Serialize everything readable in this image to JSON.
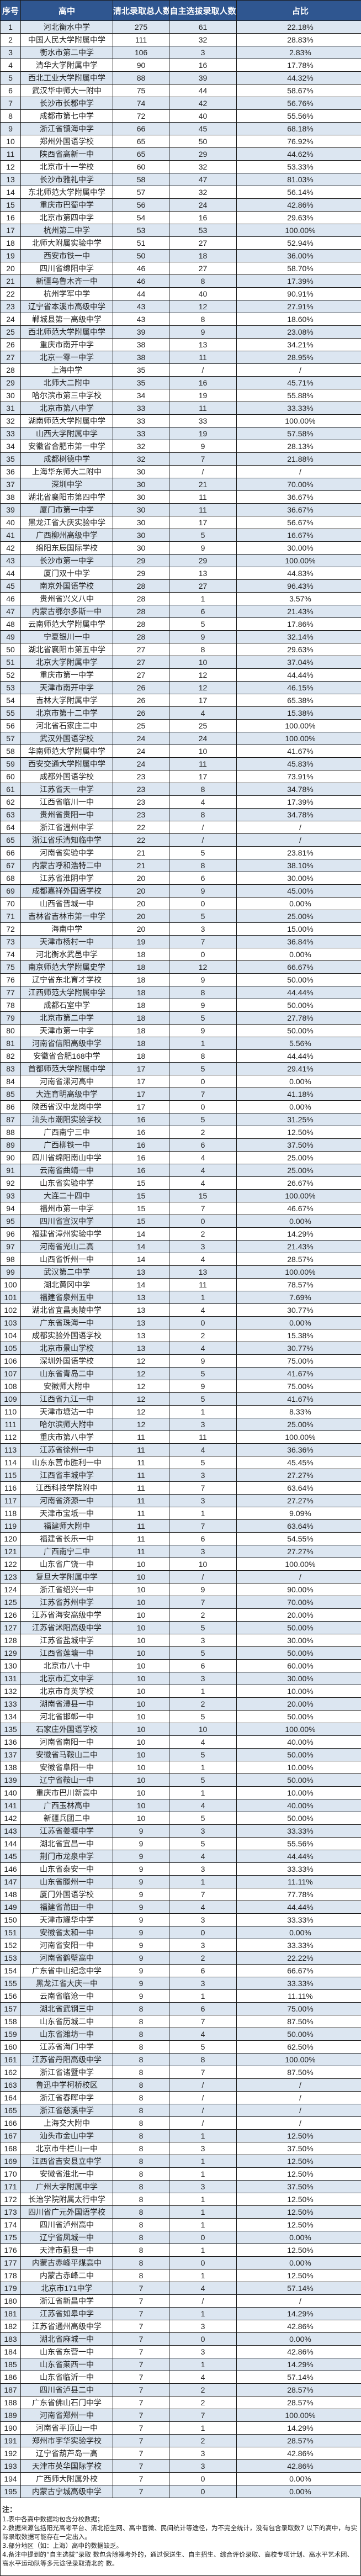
{
  "header": {
    "no": "序号",
    "school": "高中",
    "total": "清北录取总人数",
    "self": "自主选拔录取人数",
    "ratio": "占比"
  },
  "colors": {
    "header_bg": "#2f5690",
    "odd_row": "#dce6f1",
    "even_row": "#ffffff"
  },
  "rows": [
    [
      "1",
      "河北衡水中学",
      "275",
      "61",
      "22.18%"
    ],
    [
      "2",
      "中国人民大学附属中学",
      "111",
      "32",
      "28.83%"
    ],
    [
      "3",
      "衡水市第二中学",
      "106",
      "3",
      "2.83%"
    ],
    [
      "4",
      "清华大学附属中学",
      "90",
      "16",
      "17.78%"
    ],
    [
      "5",
      "西北工业大学附属中学",
      "88",
      "39",
      "44.32%"
    ],
    [
      "6",
      "武汉华中师大一附中",
      "75",
      "44",
      "58.67%"
    ],
    [
      "7",
      "长沙市长郡中学",
      "74",
      "42",
      "56.76%"
    ],
    [
      "8",
      "成都市第七中学",
      "72",
      "40",
      "55.56%"
    ],
    [
      "9",
      "浙江省镇海中学",
      "66",
      "45",
      "68.18%"
    ],
    [
      "10",
      "郑州外国语学校",
      "65",
      "50",
      "76.92%"
    ],
    [
      "11",
      "陕西省高新一中",
      "65",
      "29",
      "44.62%"
    ],
    [
      "12",
      "北京市十一学校",
      "60",
      "32",
      "53.33%"
    ],
    [
      "13",
      "长沙市雅礼中学",
      "58",
      "47",
      "81.03%"
    ],
    [
      "14",
      "东北师范大学附属中学",
      "57",
      "32",
      "56.14%"
    ],
    [
      "15",
      "重庆市巴蜀中学",
      "56",
      "24",
      "42.86%"
    ],
    [
      "16",
      "北京市第四中学",
      "54",
      "16",
      "29.63%"
    ],
    [
      "17",
      "杭州第二中学",
      "53",
      "53",
      "100.00%"
    ],
    [
      "18",
      "北师大附属实验中学",
      "51",
      "27",
      "52.94%"
    ],
    [
      "19",
      "西安市铁一中",
      "50",
      "18",
      "36.00%"
    ],
    [
      "20",
      "四川省绵阳中学",
      "46",
      "27",
      "58.70%"
    ],
    [
      "21",
      "新疆乌鲁木齐一中",
      "46",
      "8",
      "17.39%"
    ],
    [
      "22",
      "杭州学军中学",
      "44",
      "40",
      "90.91%"
    ],
    [
      "23",
      "辽宁省本溪市高级中学",
      "43",
      "12",
      "27.91%"
    ],
    [
      "24",
      "郸城县第一高级中学",
      "43",
      "8",
      "18.60%"
    ],
    [
      "25",
      "西北师范大学附属中学",
      "39",
      "9",
      "23.08%"
    ],
    [
      "26",
      "重庆市南开中学",
      "38",
      "13",
      "34.21%"
    ],
    [
      "27",
      "北京一零一中学",
      "38",
      "11",
      "28.95%"
    ],
    [
      "28",
      "上海中学",
      "35",
      "/",
      "/"
    ],
    [
      "29",
      "北师大二附中",
      "35",
      "16",
      "45.71%"
    ],
    [
      "30",
      "哈尔滨市第三中学校",
      "34",
      "19",
      "55.88%"
    ],
    [
      "31",
      "北京市第八中学",
      "33",
      "11",
      "33.33%"
    ],
    [
      "32",
      "湖南师范大学附属中学",
      "33",
      "33",
      "100.00%"
    ],
    [
      "33",
      "山西大学附属中学",
      "33",
      "19",
      "57.58%"
    ],
    [
      "34",
      "安徽省合肥市第一中学",
      "32",
      "9",
      "28.13%"
    ],
    [
      "35",
      "成都树德中学",
      "32",
      "7",
      "21.88%"
    ],
    [
      "36",
      "上海华东师大二附中",
      "30",
      "/",
      "/"
    ],
    [
      "37",
      "深圳中学",
      "30",
      "21",
      "70.00%"
    ],
    [
      "38",
      "湖北省襄阳市第四中学",
      "30",
      "11",
      "36.67%"
    ],
    [
      "39",
      "厦门市第一中学",
      "30",
      "11",
      "36.67%"
    ],
    [
      "40",
      "黑龙江省大庆实验中学",
      "30",
      "17",
      "56.67%"
    ],
    [
      "41",
      "广西柳州高级中学",
      "30",
      "5",
      "16.67%"
    ],
    [
      "42",
      "绵阳东辰国际学校",
      "30",
      "9",
      "30.00%"
    ],
    [
      "43",
      "长沙市第一中学",
      "29",
      "29",
      "100.00%"
    ],
    [
      "44",
      "厦门双十中学",
      "29",
      "13",
      "44.83%"
    ],
    [
      "45",
      "南京外国语学校",
      "28",
      "27",
      "96.43%"
    ],
    [
      "46",
      "贵州省兴义八中",
      "28",
      "1",
      "3.57%"
    ],
    [
      "47",
      "内蒙古鄂尔多斯一中",
      "28",
      "6",
      "21.43%"
    ],
    [
      "48",
      "云南师范大学附属中学",
      "28",
      "5",
      "17.86%"
    ],
    [
      "49",
      "宁夏银川一中",
      "28",
      "9",
      "32.14%"
    ],
    [
      "50",
      "湖北省襄阳市第五中学",
      "27",
      "8",
      "29.63%"
    ],
    [
      "51",
      "北京大学附属中学",
      "27",
      "10",
      "37.04%"
    ],
    [
      "52",
      "重庆市第一中学",
      "27",
      "12",
      "44.44%"
    ],
    [
      "53",
      "天津市南开中学",
      "26",
      "12",
      "46.15%"
    ],
    [
      "54",
      "吉林大学附属中学",
      "26",
      "17",
      "65.38%"
    ],
    [
      "55",
      "北京市第十二中学",
      "26",
      "4",
      "15.38%"
    ],
    [
      "56",
      "河北省石家庄二中",
      "25",
      "25",
      "100.00%"
    ],
    [
      "57",
      "武汉外国语学校",
      "24",
      "24",
      "100.00%"
    ],
    [
      "58",
      "华南师范大学附属中学",
      "24",
      "10",
      "41.67%"
    ],
    [
      "59",
      "西安交通大学附属中学",
      "24",
      "11",
      "45.83%"
    ],
    [
      "60",
      "成都外国语学校",
      "23",
      "17",
      "73.91%"
    ],
    [
      "61",
      "江苏省天一中学",
      "23",
      "8",
      "34.78%"
    ],
    [
      "62",
      "江西省临川一中",
      "23",
      "4",
      "17.39%"
    ],
    [
      "63",
      "贵州省贵阳一中",
      "23",
      "8",
      "34.78%"
    ],
    [
      "64",
      "浙江省温州中学",
      "22",
      "/",
      "/"
    ],
    [
      "65",
      "浙江省乐清知临中学",
      "22",
      "/",
      "/"
    ],
    [
      "66",
      "河南省实验中学",
      "21",
      "5",
      "23.81%"
    ],
    [
      "67",
      "内蒙古呼和浩特二中",
      "21",
      "8",
      "38.10%"
    ],
    [
      "68",
      "江苏省淮阴中学",
      "20",
      "6",
      "30.00%"
    ],
    [
      "69",
      "成都嘉祥外国语学校",
      "20",
      "9",
      "45.00%"
    ],
    [
      "70",
      "山西省晋城一中",
      "20",
      "0",
      "0.00%"
    ],
    [
      "71",
      "吉林省吉林市第一中学",
      "20",
      "5",
      "25.00%"
    ],
    [
      "72",
      "海南中学",
      "20",
      "3",
      "15.00%"
    ],
    [
      "73",
      "天津市杨村一中",
      "19",
      "7",
      "36.84%"
    ],
    [
      "74",
      "河北衡水武邑中学",
      "18",
      "0",
      "0.00%"
    ],
    [
      "75",
      "南京师范大学附属史学",
      "18",
      "12",
      "66.67%"
    ],
    [
      "76",
      "辽宁省东北育才学校",
      "18",
      "9",
      "50.00%"
    ],
    [
      "77",
      "江西师范大学附属中学",
      "18",
      "8",
      "44.44%"
    ],
    [
      "78",
      "成都石室中学",
      "18",
      "9",
      "50.00%"
    ],
    [
      "79",
      "北京市第二中学",
      "18",
      "5",
      "27.78%"
    ],
    [
      "80",
      "天津市第一中学",
      "18",
      "9",
      "50.00%"
    ],
    [
      "81",
      "河南省信阳高级中学",
      "18",
      "1",
      "5.56%"
    ],
    [
      "82",
      "安徽省合肥168中学",
      "18",
      "8",
      "44.44%"
    ],
    [
      "83",
      "首都师范大学附属中学",
      "17",
      "5",
      "29.41%"
    ],
    [
      "84",
      "河南省漯河高中",
      "17",
      "0",
      "0.00%"
    ],
    [
      "85",
      "大连育明高级中学",
      "17",
      "7",
      "41.18%"
    ],
    [
      "86",
      "陕西省汉中龙岗中学",
      "17",
      "0",
      "0.00%"
    ],
    [
      "87",
      "汕头市潮阳实验学校",
      "16",
      "5",
      "31.25%"
    ],
    [
      "88",
      "广西南宁三中",
      "16",
      "2",
      "12.50%"
    ],
    [
      "89",
      "广西柳铁一中",
      "16",
      "6",
      "37.50%"
    ],
    [
      "90",
      "四川省绵阳南山中学",
      "16",
      "4",
      "25.00%"
    ],
    [
      "91",
      "云南省曲靖一中",
      "16",
      "4",
      "25.00%"
    ],
    [
      "92",
      "山东省实验中学",
      "15",
      "4",
      "26.67%"
    ],
    [
      "93",
      "大连二十四中",
      "15",
      "15",
      "100.00%"
    ],
    [
      "94",
      "福州市第一中学",
      "15",
      "7",
      "46.67%"
    ],
    [
      "95",
      "四川省宣汉中学",
      "15",
      "0",
      "0.00%"
    ],
    [
      "96",
      "福建省漳州实验中学",
      "14",
      "2",
      "14.29%"
    ],
    [
      "97",
      "河南省光山二高",
      "14",
      "3",
      "21.43%"
    ],
    [
      "98",
      "山西省忻州一中",
      "14",
      "4",
      "28.57%"
    ],
    [
      "99",
      "武汉第二中学",
      "13",
      "13",
      "100.00%"
    ],
    [
      "100",
      "湖北黄冈中学",
      "14",
      "11",
      "78.57%"
    ],
    [
      "101",
      "福建省泉州五中",
      "13",
      "1",
      "7.69%"
    ],
    [
      "102",
      "湖北省宜昌夷陵中学",
      "13",
      "4",
      "30.77%"
    ],
    [
      "103",
      "广东省珠海一中",
      "13",
      "0",
      "0.00%"
    ],
    [
      "104",
      "成都实验外国语学校",
      "13",
      "2",
      "15.38%"
    ],
    [
      "105",
      "北京市景山学校",
      "13",
      "4",
      "30.77%"
    ],
    [
      "106",
      "深圳外国语学校",
      "12",
      "9",
      "75.00%"
    ],
    [
      "107",
      "山东省青岛二中",
      "12",
      "5",
      "41.67%"
    ],
    [
      "108",
      "安徽师大附中",
      "12",
      "9",
      "75.00%"
    ],
    [
      "109",
      "江西省九江一中",
      "12",
      "5",
      "41.67%"
    ],
    [
      "110",
      "天津市塘沽一中",
      "12",
      "1",
      "8.33%"
    ],
    [
      "111",
      "哈尔滨师大附中",
      "12",
      "3",
      "25.00%"
    ],
    [
      "112",
      "重庆市第八中学",
      "11",
      "11",
      "100.00%"
    ],
    [
      "113",
      "江苏省徐州一中",
      "11",
      "4",
      "36.36%"
    ],
    [
      "114",
      "山东东营市胜利一中",
      "11",
      "5",
      "45.45%"
    ],
    [
      "115",
      "江西省丰城中学",
      "11",
      "3",
      "27.27%"
    ],
    [
      "116",
      "江西科技学院附中",
      "11",
      "7",
      "63.64%"
    ],
    [
      "117",
      "河南省济源一中",
      "11",
      "3",
      "27.27%"
    ],
    [
      "118",
      "天津市宝坻一中",
      "11",
      "1",
      "9.09%"
    ],
    [
      "119",
      "福建师大附中",
      "11",
      "7",
      "63.64%"
    ],
    [
      "120",
      "福建省长乐一中",
      "11",
      "6",
      "54.55%"
    ],
    [
      "121",
      "广西南宁二中",
      "11",
      "3",
      "27.27%"
    ],
    [
      "122",
      "山东省广饶一中",
      "10",
      "10",
      "100.00%"
    ],
    [
      "123",
      "复旦大学附属中学",
      "10",
      "/",
      "/"
    ],
    [
      "124",
      "浙江省绍兴一中",
      "10",
      "9",
      "90.00%"
    ],
    [
      "125",
      "江苏省苏州中学",
      "10",
      "7",
      "70.00%"
    ],
    [
      "126",
      "江苏省海安高级中学",
      "10",
      "2",
      "20.00%"
    ],
    [
      "127",
      "江苏省沭阳高级中学",
      "10",
      "5",
      "50.00%"
    ],
    [
      "128",
      "江苏省盐城中学",
      "10",
      "3",
      "30.00%"
    ],
    [
      "129",
      "江西省莲塘一中",
      "10",
      "5",
      "50.00%"
    ],
    [
      "130",
      "北京市八十中",
      "10",
      "6",
      "60.00%"
    ],
    [
      "131",
      "北京市汇文中学",
      "10",
      "3",
      "30.00%"
    ],
    [
      "132",
      "北京市育英学校",
      "10",
      "1",
      "10.00%"
    ],
    [
      "133",
      "湖南省澧县一中",
      "10",
      "2",
      "20.00%"
    ],
    [
      "134",
      "河北省邯郸一中",
      "10",
      "5",
      "50.00%"
    ],
    [
      "135",
      "石家庄外国语学校",
      "10",
      "10",
      "100.00%"
    ],
    [
      "136",
      "河南省南阳一中",
      "10",
      "4",
      "40.00%"
    ],
    [
      "137",
      "安徽省马鞍山二中",
      "10",
      "5",
      "50.00%"
    ],
    [
      "138",
      "安徽省阜阳一中",
      "10",
      "1",
      "10.00%"
    ],
    [
      "139",
      "辽宁省鞍山一中",
      "10",
      "5",
      "50.00%"
    ],
    [
      "140",
      "重庆市巴川新高中",
      "10",
      "1",
      "10.00%"
    ],
    [
      "141",
      "广西玉林高中",
      "10",
      "4",
      "40.00%"
    ],
    [
      "142",
      "新疆兵团二中",
      "10",
      "5",
      "50.00%"
    ],
    [
      "143",
      "江苏省姜堰中学",
      "9",
      "3",
      "33.33%"
    ],
    [
      "144",
      "湖北省宜昌一中",
      "9",
      "5",
      "55.56%"
    ],
    [
      "145",
      "荆门市龙泉中学",
      "9",
      "4",
      "44.44%"
    ],
    [
      "146",
      "山东省泰安一中",
      "9",
      "3",
      "33.33%"
    ],
    [
      "147",
      "山东省滕州一中",
      "9",
      "1",
      "11.11%"
    ],
    [
      "148",
      "厦门外国语学校",
      "9",
      "7",
      "77.78%"
    ],
    [
      "149",
      "福建省莆田一中",
      "9",
      "4",
      "44.44%"
    ],
    [
      "150",
      "天津市耀华中学",
      "9",
      "3",
      "33.33%"
    ],
    [
      "151",
      "安徽省太和一中",
      "9",
      "0",
      "0.00%"
    ],
    [
      "152",
      "河南省安阳一中",
      "9",
      "3",
      "33.33%"
    ],
    [
      "153",
      "河南省鹤壁高中",
      "9",
      "2",
      "22.22%"
    ],
    [
      "154",
      "广东省中山纪念中学",
      "9",
      "6",
      "66.67%"
    ],
    [
      "155",
      "黑龙江省大庆一中",
      "9",
      "3",
      "33.33%"
    ],
    [
      "156",
      "云南省临沧一中",
      "9",
      "1",
      "11.11%"
    ],
    [
      "157",
      "湖北省武钢三中",
      "8",
      "6",
      "75.00%"
    ],
    [
      "158",
      "山东省历城二中",
      "8",
      "7",
      "87.50%"
    ],
    [
      "159",
      "山东省潍坊一中",
      "8",
      "4",
      "50.00%"
    ],
    [
      "160",
      "江苏省海门中学",
      "8",
      "5",
      "62.50%"
    ],
    [
      "161",
      "江苏省丹阳高级中学",
      "8",
      "8",
      "100.00%"
    ],
    [
      "162",
      "浙江省诸暨中学",
      "8",
      "7",
      "87.50%"
    ],
    [
      "163",
      "鲁迅中学柯桥校区",
      "8",
      "/",
      "/"
    ],
    [
      "164",
      "浙江省春晖中学",
      "8",
      "/",
      "/"
    ],
    [
      "165",
      "浙江省慈溪中学",
      "8",
      "/",
      "/"
    ],
    [
      "166",
      "上海交大附中",
      "8",
      "/",
      "/"
    ],
    [
      "167",
      "汕头市金山中学",
      "8",
      "1",
      "12.50%"
    ],
    [
      "168",
      "北京市牛栏山一中",
      "8",
      "3",
      "37.50%"
    ],
    [
      "169",
      "江西省吉安县立中学",
      "8",
      "1",
      "12.50%"
    ],
    [
      "170",
      "安徽省淮北一中",
      "8",
      "1",
      "12.50%"
    ],
    [
      "171",
      "广州大学附属中学",
      "8",
      "3",
      "37.50%"
    ],
    [
      "172",
      "长治学院附属太行中学",
      "8",
      "1",
      "12.50%"
    ],
    [
      "173",
      "四川省广元外国语学校",
      "8",
      "1",
      "12.50%"
    ],
    [
      "174",
      "四川省泸州高中",
      "8",
      "1",
      "12.50%"
    ],
    [
      "175",
      "辽宁省凤城一中",
      "8",
      "0",
      "0.00%"
    ],
    [
      "176",
      "天津市蓟县一中",
      "8",
      "1",
      "12.50%"
    ],
    [
      "177",
      "内蒙古赤峰平煤高中",
      "8",
      "0",
      "0.00%"
    ],
    [
      "178",
      "内蒙古赤峰二中",
      "8",
      "1",
      "12.50%"
    ],
    [
      "179",
      "北京市171中学",
      "7",
      "4",
      "57.14%"
    ],
    [
      "180",
      "浙江省新昌中学",
      "7",
      "/",
      "/"
    ],
    [
      "181",
      "江苏省如皋中学",
      "7",
      "1",
      "14.29%"
    ],
    [
      "182",
      "江苏省通州高级中学",
      "7",
      "3",
      "42.86%"
    ],
    [
      "183",
      "湖北省麻城一中",
      "7",
      "0",
      "0.00%"
    ],
    [
      "184",
      "山东省东营一中",
      "7",
      "3",
      "42.86%"
    ],
    [
      "185",
      "山东省莱西一中",
      "7",
      "1",
      "14.29%"
    ],
    [
      "186",
      "山东省临沂一中",
      "7",
      "4",
      "57.14%"
    ],
    [
      "187",
      "四川省泸县二中",
      "7",
      "2",
      "28.57%"
    ],
    [
      "188",
      "广东省佛山石门中学",
      "7",
      "2",
      "28.57%"
    ],
    [
      "189",
      "河南省郑州一中",
      "7",
      "7",
      "100.00%"
    ],
    [
      "190",
      "河南省平顶山一中",
      "7",
      "1",
      "14.29%"
    ],
    [
      "191",
      "郑州市宇华实验学校",
      "7",
      "2",
      "28.57%"
    ],
    [
      "192",
      "辽宁省葫芦岛一高",
      "7",
      "3",
      "42.86%"
    ],
    [
      "193",
      "天津市英华国际学校",
      "7",
      "3",
      "42.86%"
    ],
    [
      "194",
      "广西师大附属外校",
      "7",
      "0",
      "0.00%"
    ],
    [
      "195",
      "内蒙古宁城高级中学",
      "7",
      "0",
      "0.00%"
    ]
  ],
  "notes": {
    "title": "注：",
    "items": [
      "1.表中各高中数据均包含分校数据；",
      "2.数据来源包括阳光高考平台、清北招生网、高中官微、民间统计等途径，为不完全统计，没有包含录取数7 以下的高中，与实际录取数据可能存在一定出入。",
      "3.部分地区（如：上海）高中的数据缺乏。",
      "4.备注中提到的“自主选拔”录取 数包含除裸考外的，通过保送生、自主招生、综合评价录取、高校专项计划、高水平艺术团、高水平运动队等多元途径录取清北的 数。"
    ]
  }
}
